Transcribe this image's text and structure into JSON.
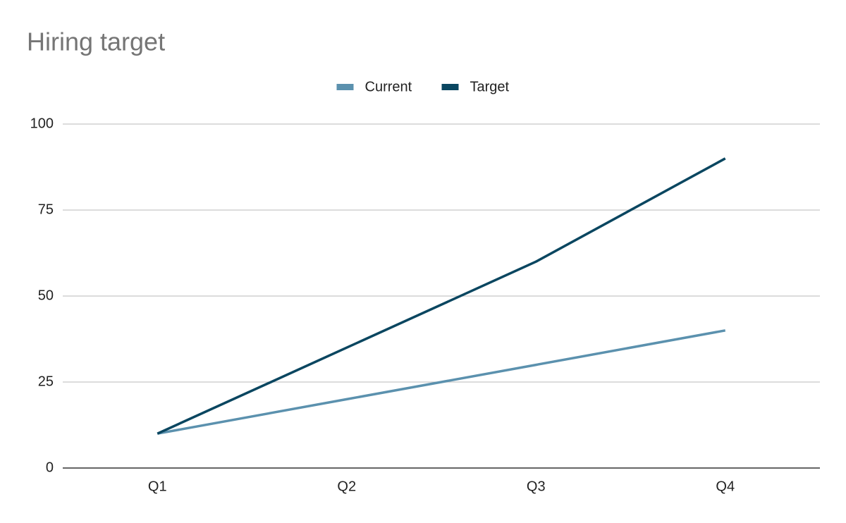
{
  "chart_data": {
    "type": "line",
    "title": "Hiring target",
    "categories": [
      "Q1",
      "Q2",
      "Q3",
      "Q4"
    ],
    "series": [
      {
        "name": "Current",
        "color": "#5b91ae",
        "values": [
          10,
          20,
          30,
          40
        ]
      },
      {
        "name": "Target",
        "color": "#0a4660",
        "values": [
          10,
          35,
          60,
          90
        ]
      }
    ],
    "ylim": [
      0,
      100
    ],
    "yticks": [
      0,
      25,
      50,
      75,
      100
    ],
    "grid": true,
    "legend": "top"
  }
}
